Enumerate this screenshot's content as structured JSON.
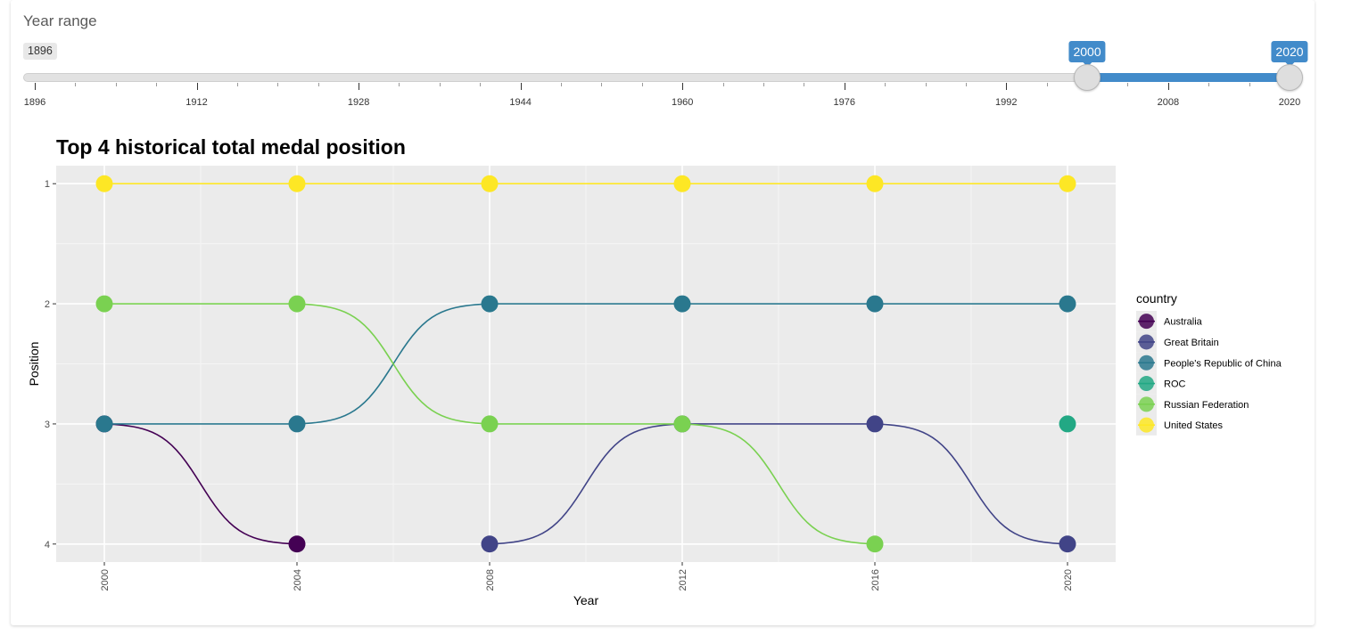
{
  "slider": {
    "label": "Year range",
    "min": 1896,
    "max": 2020,
    "from": 2000,
    "to": 2020,
    "min_label": "1896",
    "from_label": "2000",
    "to_label": "2020",
    "ticks": [
      "1896",
      "1912",
      "1928",
      "1944",
      "1960",
      "1976",
      "1992",
      "2008",
      "2020"
    ],
    "accent_color": "#428bca"
  },
  "chart_data": {
    "type": "line",
    "title": "Top 4 historical total medal position",
    "xlabel": "Year",
    "ylabel": "Position",
    "x": [
      2000,
      2004,
      2008,
      2012,
      2016,
      2020
    ],
    "x_tick_labels": [
      "2000",
      "2004",
      "2008",
      "2012",
      "2016",
      "2020"
    ],
    "y_tick_labels": [
      "1",
      "2",
      "3",
      "4"
    ],
    "ylim": [
      4.15,
      0.85
    ],
    "y_reversed": true,
    "grid": true,
    "legend_title": "country",
    "legend_position": "right",
    "series": [
      {
        "name": "Australia",
        "color": "#440154",
        "points": [
          [
            2000,
            3
          ],
          [
            2004,
            4
          ]
        ]
      },
      {
        "name": "Great Britain",
        "color": "#414487",
        "points": [
          [
            2008,
            4
          ],
          [
            2012,
            3
          ],
          [
            2016,
            3
          ],
          [
            2020,
            4
          ]
        ]
      },
      {
        "name": "People's Republic of China",
        "color": "#2a788e",
        "points": [
          [
            2000,
            3
          ],
          [
            2004,
            3
          ],
          [
            2008,
            2
          ],
          [
            2012,
            2
          ],
          [
            2016,
            2
          ],
          [
            2020,
            2
          ]
        ]
      },
      {
        "name": "ROC",
        "color": "#22a884",
        "points": [
          [
            2020,
            3
          ]
        ]
      },
      {
        "name": "Russian Federation",
        "color": "#7ad151",
        "points": [
          [
            2000,
            2
          ],
          [
            2004,
            2
          ],
          [
            2008,
            3
          ],
          [
            2012,
            3
          ],
          [
            2016,
            4
          ]
        ]
      },
      {
        "name": "United States",
        "color": "#fde725",
        "points": [
          [
            2000,
            1
          ],
          [
            2004,
            1
          ],
          [
            2008,
            1
          ],
          [
            2012,
            1
          ],
          [
            2016,
            1
          ],
          [
            2020,
            1
          ]
        ]
      }
    ]
  }
}
